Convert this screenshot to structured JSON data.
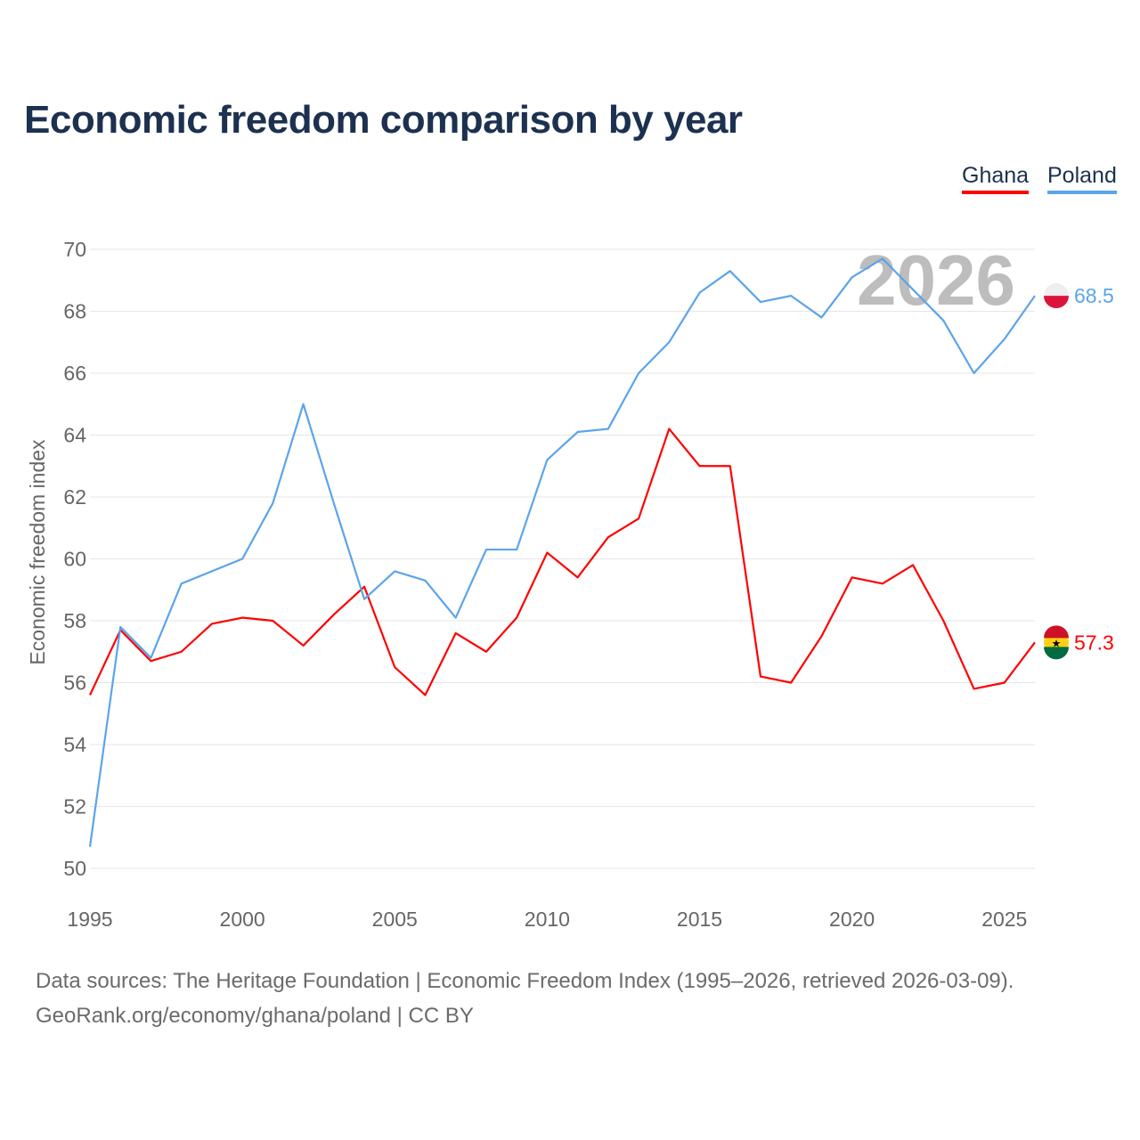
{
  "title": "Economic freedom comparison by year",
  "colors": {
    "ghana": "#ff0000",
    "poland": "#5ba4ec"
  },
  "chart_data": {
    "type": "line",
    "title": "Economic freedom comparison by year",
    "ylabel": "Economic freedom index",
    "xlabel": "",
    "ylim": [
      50,
      70
    ],
    "xlim": [
      1995,
      2026
    ],
    "yticks": [
      "50",
      "52",
      "54",
      "56",
      "58",
      "60",
      "62",
      "64",
      "66",
      "68",
      "70"
    ],
    "xticks": [
      "1995",
      "2000",
      "2005",
      "2010",
      "2015",
      "2020",
      "2025"
    ],
    "watermark_year": "2026",
    "legend": [
      "Ghana",
      "Poland"
    ],
    "legend_position": "top-right",
    "x": [
      1995,
      1996,
      1997,
      1998,
      1999,
      2000,
      2001,
      2002,
      2003,
      2004,
      2005,
      2006,
      2007,
      2008,
      2009,
      2010,
      2011,
      2012,
      2013,
      2014,
      2015,
      2016,
      2017,
      2018,
      2019,
      2020,
      2021,
      2022,
      2023,
      2024,
      2025,
      2026
    ],
    "series": [
      {
        "name": "Ghana",
        "end_label": "57.3",
        "values": [
          55.6,
          57.7,
          56.7,
          57.0,
          57.9,
          58.1,
          58.0,
          57.2,
          58.2,
          59.1,
          56.5,
          55.6,
          57.6,
          57.0,
          58.1,
          60.2,
          59.4,
          60.7,
          61.3,
          64.2,
          63.0,
          63.0,
          56.2,
          56.0,
          57.5,
          59.4,
          59.2,
          59.8,
          58.0,
          55.8,
          56.0,
          57.3
        ]
      },
      {
        "name": "Poland",
        "end_label": "68.5",
        "values": [
          50.7,
          57.8,
          56.8,
          59.2,
          59.6,
          60.0,
          61.8,
          65.0,
          61.8,
          58.7,
          59.6,
          59.3,
          58.1,
          60.3,
          60.3,
          63.2,
          64.1,
          64.2,
          66.0,
          67.0,
          68.6,
          69.3,
          68.3,
          68.5,
          67.8,
          69.1,
          69.7,
          68.7,
          67.7,
          66.0,
          67.1,
          68.5
        ]
      }
    ]
  },
  "footer": {
    "line1": "Data sources: The Heritage Foundation | Economic Freedom Index (1995–2026, retrieved 2026-03-09).",
    "line2": "GeoRank.org/economy/ghana/poland | CC BY"
  }
}
